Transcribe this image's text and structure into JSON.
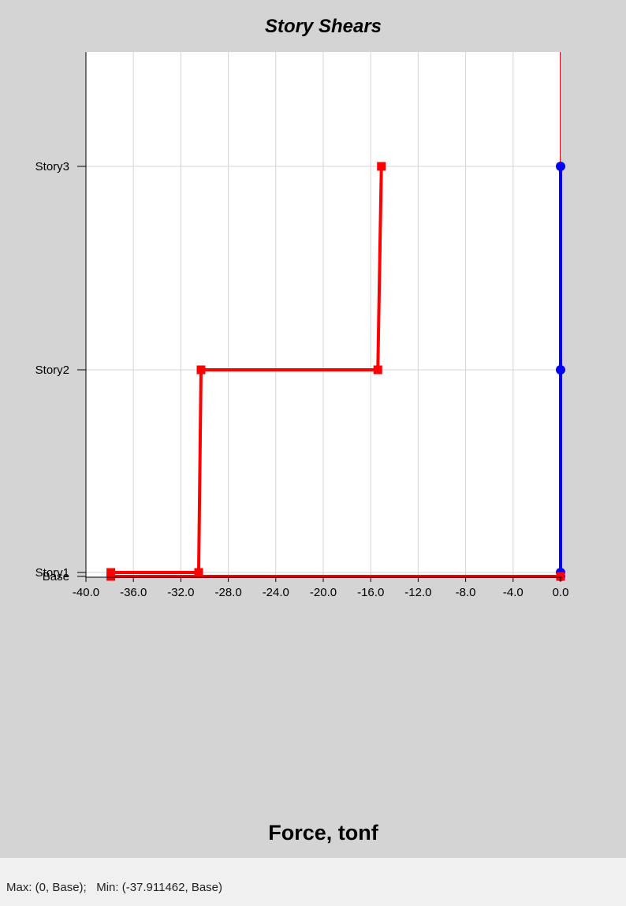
{
  "chart_data": {
    "type": "line",
    "title": "Story Shears",
    "xlabel": "Force, tonf",
    "ylabel": "",
    "xlim": [
      -40.0,
      1.0
    ],
    "x_ticks": [
      "-40.0",
      "-36.0",
      "-32.0",
      "-28.0",
      "-24.0",
      "-20.0",
      "-16.0",
      "-12.0",
      "-8.0",
      "-4.0",
      "0.0"
    ],
    "x_tick_values": [
      -40,
      -36,
      -32,
      -28,
      -24,
      -20,
      -16,
      -12,
      -8,
      -4,
      0
    ],
    "y_categories": [
      "Base",
      "Story1",
      "Story2",
      "Story3"
    ],
    "grid": true,
    "series": [
      {
        "color": "#ff0000",
        "marker": "square",
        "points": [
          {
            "x": 0.0,
            "level": "Base"
          },
          {
            "x": -37.9,
            "level": "Base"
          },
          {
            "x": -37.9,
            "level": "Story1"
          },
          {
            "x": -30.5,
            "level": "Story1"
          },
          {
            "x": -30.3,
            "level": "Story2"
          },
          {
            "x": -15.4,
            "level": "Story2"
          },
          {
            "x": -15.1,
            "level": "Story3"
          }
        ]
      },
      {
        "color": "#0000ff",
        "marker": "circle",
        "points": [
          {
            "x": 0.0,
            "level": "Base"
          },
          {
            "x": 0.0,
            "level": "Story1"
          },
          {
            "x": 0.0,
            "level": "Story2"
          },
          {
            "x": 0.0,
            "level": "Story3"
          }
        ]
      }
    ]
  },
  "status": {
    "text": "Max: (0, Base);   Min: (-37.911462, Base)"
  }
}
